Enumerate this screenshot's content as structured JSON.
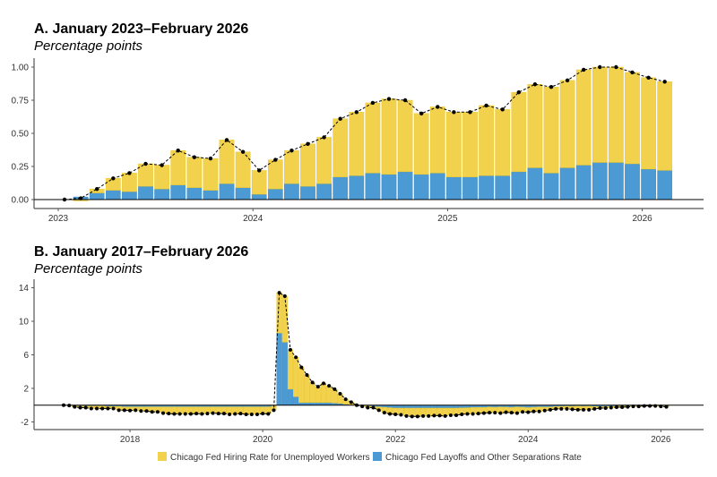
{
  "colors": {
    "hiring": "#f2d24c",
    "hiring_edge": "#e9c21c",
    "separations": "#4b9ad4",
    "separations_edge": "#2f84c4",
    "total": "#000000"
  },
  "legend": {
    "placement": "bottom",
    "items": [
      {
        "label": "Chicago Fed Hiring Rate for Unemployed Workers",
        "color": "#f2d24c"
      },
      {
        "label": "Chicago Fed Layoffs and Other Separations Rate",
        "color": "#4b9ad4"
      }
    ]
  },
  "chart_data": [
    {
      "type": "bar",
      "stacked": true,
      "title": "A. January 2023–February 2026",
      "subtitle": "Percentage points",
      "ylim": [
        0,
        1.05
      ],
      "yticks": [
        "0.00",
        "0.25",
        "0.50",
        "0.75",
        "1.00"
      ],
      "xticks": [
        "2023",
        "2024",
        "2025",
        "2026"
      ],
      "grid": false,
      "x": [
        "2023-01",
        "2023-02",
        "2023-03",
        "2023-04",
        "2023-05",
        "2023-06",
        "2023-07",
        "2023-08",
        "2023-09",
        "2023-10",
        "2023-11",
        "2023-12",
        "2024-01",
        "2024-02",
        "2024-03",
        "2024-04",
        "2024-05",
        "2024-06",
        "2024-07",
        "2024-08",
        "2024-09",
        "2024-10",
        "2024-11",
        "2024-12",
        "2025-01",
        "2025-02",
        "2025-03",
        "2025-04",
        "2025-05",
        "2025-06",
        "2025-07",
        "2025-08",
        "2025-09",
        "2025-10",
        "2025-11",
        "2025-12",
        "2026-01",
        "2026-02"
      ],
      "series": [
        {
          "name": "Chicago Fed Layoffs and Other Separations Rate",
          "values": [
            0,
            0.02,
            0.05,
            0.07,
            0.06,
            0.1,
            0.08,
            0.11,
            0.09,
            0.07,
            0.12,
            0.09,
            0.04,
            0.08,
            0.12,
            0.1,
            0.12,
            0.17,
            0.18,
            0.2,
            0.19,
            0.21,
            0.19,
            0.2,
            0.17,
            0.17,
            0.18,
            0.18,
            0.21,
            0.24,
            0.2,
            0.24,
            0.26,
            0.28,
            0.28,
            0.27,
            0.23,
            0.22
          ]
        },
        {
          "name": "Chicago Fed Hiring Rate for Unemployed Workers",
          "values": [
            0,
            -0.01,
            0.03,
            0.09,
            0.14,
            0.17,
            0.18,
            0.26,
            0.23,
            0.24,
            0.33,
            0.27,
            0.18,
            0.22,
            0.25,
            0.32,
            0.35,
            0.44,
            0.48,
            0.53,
            0.57,
            0.54,
            0.46,
            0.5,
            0.49,
            0.49,
            0.53,
            0.5,
            0.6,
            0.63,
            0.65,
            0.66,
            0.72,
            0.72,
            0.72,
            0.69,
            0.69,
            0.67
          ]
        }
      ],
      "total": [
        0,
        0.01,
        0.08,
        0.16,
        0.2,
        0.27,
        0.26,
        0.37,
        0.32,
        0.31,
        0.45,
        0.36,
        0.22,
        0.3,
        0.37,
        0.42,
        0.47,
        0.61,
        0.66,
        0.73,
        0.76,
        0.75,
        0.65,
        0.7,
        0.66,
        0.66,
        0.71,
        0.68,
        0.81,
        0.87,
        0.85,
        0.9,
        0.98,
        1.0,
        1.0,
        0.96,
        0.92,
        0.89
      ]
    },
    {
      "type": "bar",
      "stacked": true,
      "title": "B. January 2017–February 2026",
      "subtitle": "Percentage points",
      "ylim": [
        -3,
        15
      ],
      "yticks": [
        "-2",
        "2",
        "6",
        "10",
        "14"
      ],
      "xticks": [
        "2018",
        "2020",
        "2022",
        "2024",
        "2026"
      ],
      "grid": false,
      "x": [
        "2017-01",
        "2017-02",
        "2017-03",
        "2017-04",
        "2017-05",
        "2017-06",
        "2017-07",
        "2017-08",
        "2017-09",
        "2017-10",
        "2017-11",
        "2017-12",
        "2018-01",
        "2018-02",
        "2018-03",
        "2018-04",
        "2018-05",
        "2018-06",
        "2018-07",
        "2018-08",
        "2018-09",
        "2018-10",
        "2018-11",
        "2018-12",
        "2019-01",
        "2019-02",
        "2019-03",
        "2019-04",
        "2019-05",
        "2019-06",
        "2019-07",
        "2019-08",
        "2019-09",
        "2019-10",
        "2019-11",
        "2019-12",
        "2020-01",
        "2020-02",
        "2020-03",
        "2020-04",
        "2020-05",
        "2020-06",
        "2020-07",
        "2020-08",
        "2020-09",
        "2020-10",
        "2020-11",
        "2020-12",
        "2021-01",
        "2021-02",
        "2021-03",
        "2021-04",
        "2021-05",
        "2021-06",
        "2021-07",
        "2021-08",
        "2021-09",
        "2021-10",
        "2021-11",
        "2021-12",
        "2022-01",
        "2022-02",
        "2022-03",
        "2022-04",
        "2022-05",
        "2022-06",
        "2022-07",
        "2022-08",
        "2022-09",
        "2022-10",
        "2022-11",
        "2022-12",
        "2023-01",
        "2023-02",
        "2023-03",
        "2023-04",
        "2023-05",
        "2023-06",
        "2023-07",
        "2023-08",
        "2023-09",
        "2023-10",
        "2023-11",
        "2023-12",
        "2024-01",
        "2024-02",
        "2024-03",
        "2024-04",
        "2024-05",
        "2024-06",
        "2024-07",
        "2024-08",
        "2024-09",
        "2024-10",
        "2024-11",
        "2024-12",
        "2025-01",
        "2025-02",
        "2025-03",
        "2025-04",
        "2025-05",
        "2025-06",
        "2025-07",
        "2025-08",
        "2025-09",
        "2025-10",
        "2025-11",
        "2025-12",
        "2026-01",
        "2026-02"
      ],
      "series": [
        {
          "name": "Chicago Fed Layoffs and Other Separations Rate",
          "values": [
            0,
            0,
            -0.05,
            -0.1,
            -0.1,
            -0.1,
            -0.1,
            -0.1,
            -0.15,
            -0.15,
            -0.15,
            -0.2,
            -0.2,
            -0.2,
            -0.2,
            -0.2,
            -0.2,
            -0.2,
            -0.2,
            -0.2,
            -0.2,
            -0.2,
            -0.2,
            -0.2,
            -0.2,
            -0.2,
            -0.2,
            -0.2,
            -0.2,
            -0.2,
            -0.2,
            -0.2,
            -0.2,
            -0.2,
            -0.2,
            -0.2,
            -0.2,
            -0.2,
            -0.1,
            8.6,
            7.5,
            1.9,
            1.0,
            0.3,
            0.3,
            0.3,
            0.3,
            0.3,
            0.3,
            0.25,
            0.2,
            0.1,
            0.05,
            0,
            -0.05,
            -0.1,
            -0.15,
            -0.2,
            -0.25,
            -0.3,
            -0.35,
            -0.35,
            -0.35,
            -0.35,
            -0.35,
            -0.35,
            -0.35,
            -0.35,
            -0.35,
            -0.35,
            -0.35,
            -0.35,
            -0.33,
            -0.31,
            -0.28,
            -0.26,
            -0.27,
            -0.23,
            -0.25,
            -0.22,
            -0.24,
            -0.26,
            -0.21,
            -0.24,
            -0.29,
            -0.25,
            -0.21,
            -0.23,
            -0.21,
            -0.16,
            -0.15,
            -0.13,
            -0.14,
            -0.12,
            -0.14,
            -0.13,
            -0.16,
            -0.16,
            -0.15,
            -0.15,
            -0.12,
            -0.09,
            -0.13,
            -0.09,
            -0.07,
            -0.05,
            -0.05,
            -0.06,
            -0.1,
            -0.11
          ]
        },
        {
          "name": "Chicago Fed Hiring Rate for Unemployed Workers",
          "values": [
            0,
            -0.05,
            -0.15,
            -0.2,
            -0.2,
            -0.3,
            -0.3,
            -0.3,
            -0.25,
            -0.25,
            -0.45,
            -0.4,
            -0.45,
            -0.4,
            -0.5,
            -0.5,
            -0.6,
            -0.6,
            -0.75,
            -0.8,
            -0.85,
            -0.85,
            -0.85,
            -0.85,
            -0.8,
            -0.85,
            -0.8,
            -0.75,
            -0.8,
            -0.8,
            -0.9,
            -0.85,
            -0.8,
            -0.9,
            -0.9,
            -0.9,
            -0.8,
            -0.85,
            -0.5,
            4.8,
            5.5,
            4.7,
            4.7,
            4.2,
            3.3,
            2.4,
            1.9,
            2.3,
            2.0,
            1.65,
            1.15,
            0.6,
            0.3,
            0,
            -0.1,
            -0.2,
            -0.15,
            -0.4,
            -0.65,
            -0.75,
            -0.75,
            -0.8,
            -0.95,
            -1.0,
            -1.0,
            -0.95,
            -0.95,
            -0.9,
            -0.9,
            -0.95,
            -0.85,
            -0.85,
            -0.77,
            -0.74,
            -0.77,
            -0.74,
            -0.68,
            -0.67,
            -0.65,
            -0.73,
            -0.61,
            -0.64,
            -0.74,
            -0.56,
            -0.56,
            -0.5,
            -0.54,
            -0.42,
            -0.34,
            -0.29,
            -0.3,
            -0.32,
            -0.36,
            -0.43,
            -0.41,
            -0.42,
            -0.29,
            -0.19,
            -0.2,
            -0.15,
            -0.13,
            -0.16,
            -0.07,
            -0.06,
            -0.08,
            -0.05,
            -0.05,
            -0.04,
            -0.05,
            -0.09
          ]
        }
      ],
      "total": [
        0,
        -0.05,
        -0.2,
        -0.3,
        -0.3,
        -0.4,
        -0.4,
        -0.4,
        -0.4,
        -0.4,
        -0.6,
        -0.6,
        -0.65,
        -0.6,
        -0.7,
        -0.7,
        -0.8,
        -0.8,
        -0.95,
        -1.0,
        -1.05,
        -1.05,
        -1.05,
        -1.05,
        -1.0,
        -1.05,
        -1.0,
        -0.95,
        -1.0,
        -1.0,
        -1.1,
        -1.05,
        -1.0,
        -1.1,
        -1.1,
        -1.1,
        -1.0,
        -1.05,
        -0.6,
        13.4,
        13.0,
        6.6,
        5.7,
        4.5,
        3.6,
        2.7,
        2.2,
        2.6,
        2.3,
        1.9,
        1.35,
        0.7,
        0.35,
        0,
        -0.15,
        -0.3,
        -0.3,
        -0.6,
        -0.9,
        -1.05,
        -1.1,
        -1.15,
        -1.3,
        -1.35,
        -1.35,
        -1.3,
        -1.3,
        -1.25,
        -1.25,
        -1.3,
        -1.2,
        -1.2,
        -1.1,
        -1.05,
        -1.05,
        -1.0,
        -0.95,
        -0.9,
        -0.9,
        -0.95,
        -0.85,
        -0.9,
        -0.95,
        -0.8,
        -0.85,
        -0.75,
        -0.75,
        -0.65,
        -0.55,
        -0.45,
        -0.45,
        -0.45,
        -0.5,
        -0.55,
        -0.55,
        -0.55,
        -0.45,
        -0.35,
        -0.35,
        -0.3,
        -0.25,
        -0.25,
        -0.2,
        -0.15,
        -0.15,
        -0.1,
        -0.1,
        -0.1,
        -0.15,
        -0.2
      ]
    }
  ]
}
